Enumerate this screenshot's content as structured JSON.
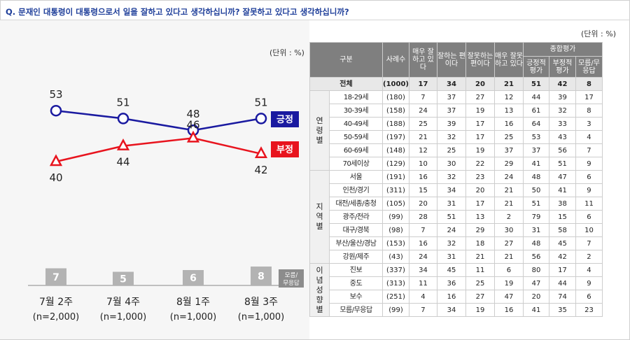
{
  "question": "Q. 문재인 대통령이 대통령으로서 일을 잘하고 있다고 생각하십니까? 잘못하고 있다고 생각하십니까?",
  "unit_label": "(단위 : %)",
  "chart_data": {
    "type": "line",
    "x": [
      "7월 2주",
      "7월 4주",
      "8월 1주",
      "8월 3주"
    ],
    "x_sub": [
      "(n=2,000)",
      "(n=1,000)",
      "(n=1,000)",
      "(n=1,000)"
    ],
    "series": [
      {
        "name": "긍정",
        "values": [
          53,
          51,
          48,
          51
        ],
        "color": "#1a1aa0"
      },
      {
        "name": "부정",
        "values": [
          40,
          44,
          46,
          42
        ],
        "color": "#e8141e"
      }
    ],
    "bar_series": {
      "name": "모름/무응답",
      "values": [
        7,
        5,
        6,
        8
      ],
      "color": "#b3b3b3"
    }
  },
  "table": {
    "headers": {
      "category": "구분",
      "sample": "사례수",
      "very_good": "매우 잘하고 있다",
      "good": "잘하는 편이다",
      "bad": "잘못하는 편이다",
      "very_bad": "매우 잘못하고 있다",
      "overall": "종합평가",
      "positive": "긍정적 평가",
      "negative": "부정적 평가",
      "dk": "모름/무응답"
    },
    "total": {
      "label": "전체",
      "n": "(1000)",
      "v": [
        "17",
        "34",
        "20",
        "21",
        "51",
        "42",
        "8"
      ]
    },
    "groups": [
      {
        "name": "연령별",
        "rows": [
          {
            "label": "18-29세",
            "n": "(180)",
            "v": [
              "7",
              "37",
              "27",
              "12",
              "44",
              "39",
              "17"
            ]
          },
          {
            "label": "30-39세",
            "n": "(158)",
            "v": [
              "24",
              "37",
              "19",
              "13",
              "61",
              "32",
              "8"
            ]
          },
          {
            "label": "40-49세",
            "n": "(188)",
            "v": [
              "25",
              "39",
              "17",
              "16",
              "64",
              "33",
              "3"
            ]
          },
          {
            "label": "50-59세",
            "n": "(197)",
            "v": [
              "21",
              "32",
              "17",
              "25",
              "53",
              "43",
              "4"
            ]
          },
          {
            "label": "60-69세",
            "n": "(148)",
            "v": [
              "12",
              "25",
              "19",
              "37",
              "37",
              "56",
              "7"
            ]
          },
          {
            "label": "70세이상",
            "n": "(129)",
            "v": [
              "10",
              "30",
              "22",
              "29",
              "41",
              "51",
              "9"
            ]
          }
        ]
      },
      {
        "name": "지역별",
        "rows": [
          {
            "label": "서울",
            "n": "(191)",
            "v": [
              "16",
              "32",
              "23",
              "24",
              "48",
              "47",
              "6"
            ]
          },
          {
            "label": "인천/경기",
            "n": "(311)",
            "v": [
              "15",
              "34",
              "20",
              "21",
              "50",
              "41",
              "9"
            ]
          },
          {
            "label": "대전/세종/충청",
            "n": "(105)",
            "v": [
              "20",
              "31",
              "17",
              "21",
              "51",
              "38",
              "11"
            ]
          },
          {
            "label": "광주/전라",
            "n": "(99)",
            "v": [
              "28",
              "51",
              "13",
              "2",
              "79",
              "15",
              "6"
            ]
          },
          {
            "label": "대구/경북",
            "n": "(98)",
            "v": [
              "7",
              "24",
              "29",
              "30",
              "31",
              "58",
              "10"
            ]
          },
          {
            "label": "부산/울산/경남",
            "n": "(153)",
            "v": [
              "16",
              "32",
              "18",
              "27",
              "48",
              "45",
              "7"
            ]
          },
          {
            "label": "강원/제주",
            "n": "(43)",
            "v": [
              "24",
              "31",
              "21",
              "21",
              "56",
              "42",
              "2"
            ]
          }
        ]
      },
      {
        "name": "이념성향별",
        "rows": [
          {
            "label": "진보",
            "n": "(337)",
            "v": [
              "34",
              "45",
              "11",
              "6",
              "80",
              "17",
              "4"
            ]
          },
          {
            "label": "중도",
            "n": "(313)",
            "v": [
              "11",
              "36",
              "25",
              "19",
              "47",
              "44",
              "9"
            ]
          },
          {
            "label": "보수",
            "n": "(251)",
            "v": [
              "4",
              "16",
              "27",
              "47",
              "20",
              "74",
              "6"
            ]
          },
          {
            "label": "모름/무응답",
            "n": "(99)",
            "v": [
              "7",
              "34",
              "19",
              "16",
              "41",
              "35",
              "23"
            ]
          }
        ]
      }
    ]
  }
}
